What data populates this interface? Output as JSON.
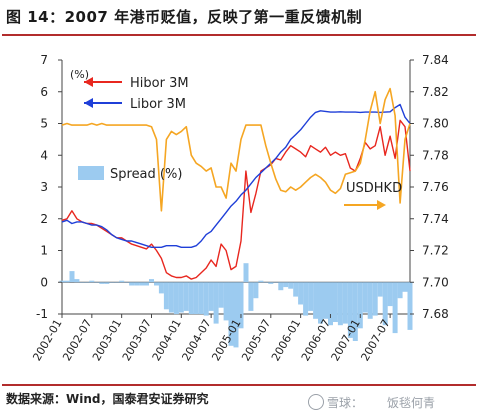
{
  "page": {
    "title": "图 14：2007 年港币贬值，反映了第一重反馈机制",
    "source": "数据来源：Wind，国泰君安证券研究",
    "watermark_left": "雪球：",
    "watermark_right": "饭毯何青"
  },
  "chart_data": {
    "type": "line",
    "left_axis_unit": "(%)",
    "left_ylim": [
      -1,
      7
    ],
    "left_ticks": [
      -1,
      0,
      1,
      2,
      3,
      4,
      5,
      6,
      7
    ],
    "right_ylim": [
      7.68,
      7.84
    ],
    "right_ticks": [
      "7.68",
      "7.70",
      "7.72",
      "7.74",
      "7.76",
      "7.78",
      "7.80",
      "7.82",
      "7.84"
    ],
    "x_tick_labels": [
      "2002-01",
      "2002-07",
      "2003-01",
      "2003-07",
      "2004-01",
      "2004-07",
      "2005-01",
      "2005-07",
      "2006-01",
      "2006-07",
      "2007-01",
      "2007-07"
    ],
    "series": [
      {
        "name": "Hibor 3M",
        "color": "#e8271f",
        "axis": "left",
        "values": [
          1.95,
          2.0,
          2.25,
          2.0,
          1.9,
          1.85,
          1.85,
          1.8,
          1.7,
          1.6,
          1.5,
          1.4,
          1.4,
          1.3,
          1.2,
          1.15,
          1.1,
          1.05,
          1.2,
          1.0,
          0.75,
          0.3,
          0.2,
          0.15,
          0.15,
          0.2,
          0.1,
          0.15,
          0.3,
          0.45,
          0.7,
          0.5,
          1.2,
          1.0,
          0.4,
          0.5,
          1.3,
          3.5,
          2.2,
          2.8,
          3.5,
          3.6,
          3.7,
          3.9,
          3.85,
          4.1,
          4.3,
          4.2,
          4.1,
          3.95,
          4.3,
          4.2,
          4.1,
          4.25,
          4.0,
          4.1,
          4.0,
          4.05,
          3.6,
          3.5,
          3.9,
          4.4,
          4.2,
          4.3,
          4.9,
          4.0,
          4.6,
          3.9,
          5.1,
          4.9,
          3.5
        ]
      },
      {
        "name": "Libor 3M",
        "color": "#1f3fd8",
        "axis": "left",
        "values": [
          1.9,
          1.95,
          1.85,
          1.9,
          1.9,
          1.85,
          1.8,
          1.8,
          1.75,
          1.65,
          1.5,
          1.4,
          1.35,
          1.3,
          1.3,
          1.25,
          1.2,
          1.15,
          1.1,
          1.1,
          1.1,
          1.15,
          1.15,
          1.15,
          1.1,
          1.1,
          1.1,
          1.15,
          1.3,
          1.5,
          1.6,
          1.8,
          2.0,
          2.2,
          2.4,
          2.55,
          2.75,
          2.9,
          3.1,
          3.3,
          3.45,
          3.6,
          3.75,
          3.9,
          4.1,
          4.25,
          4.5,
          4.65,
          4.8,
          5.0,
          5.2,
          5.35,
          5.4,
          5.38,
          5.36,
          5.36,
          5.37,
          5.36,
          5.36,
          5.36,
          5.35,
          5.36,
          5.36,
          5.36,
          5.35,
          5.36,
          5.37,
          5.5,
          5.6,
          5.2,
          5.0
        ]
      },
      {
        "name": "Spread",
        "unit": "(%)",
        "color": "#9ccbf0",
        "axis": "left",
        "kind": "area",
        "values": [
          0.05,
          0.05,
          0.35,
          0.1,
          0.0,
          0.0,
          0.05,
          0.0,
          -0.05,
          -0.05,
          0.0,
          0.0,
          0.05,
          0.0,
          -0.1,
          -0.1,
          -0.1,
          -0.1,
          0.1,
          -0.1,
          -0.35,
          -0.85,
          -0.95,
          -1.0,
          -0.95,
          -0.9,
          -1.0,
          -1.0,
          -1.0,
          -1.05,
          -0.9,
          -1.3,
          -0.8,
          -1.2,
          -2.0,
          -2.05,
          -1.45,
          0.6,
          -0.9,
          -0.5,
          0.05,
          0.0,
          -0.05,
          0.0,
          -0.25,
          -0.15,
          -0.2,
          -0.45,
          -0.7,
          -1.05,
          -0.9,
          -1.15,
          -1.3,
          -1.15,
          -1.35,
          -1.25,
          -1.35,
          -1.3,
          -1.75,
          -1.85,
          -1.45,
          -0.95,
          -1.15,
          -1.05,
          -0.45,
          -1.35,
          -0.75,
          -1.6,
          -0.5,
          -0.3,
          -1.5
        ]
      },
      {
        "name": "USDHKD",
        "color": "#f5a623",
        "axis": "right",
        "values": [
          7.799,
          7.8,
          7.799,
          7.799,
          7.799,
          7.799,
          7.8,
          7.799,
          7.8,
          7.799,
          7.799,
          7.799,
          7.799,
          7.799,
          7.799,
          7.799,
          7.799,
          7.799,
          7.798,
          7.79,
          7.745,
          7.79,
          7.795,
          7.793,
          7.795,
          7.798,
          7.78,
          7.775,
          7.773,
          7.77,
          7.772,
          7.76,
          7.76,
          7.753,
          7.775,
          7.77,
          7.79,
          7.799,
          7.799,
          7.799,
          7.799,
          7.786,
          7.775,
          7.765,
          7.758,
          7.757,
          7.76,
          7.758,
          7.76,
          7.763,
          7.766,
          7.768,
          7.766,
          7.763,
          7.758,
          7.756,
          7.759,
          7.768,
          7.769,
          7.77,
          7.775,
          7.79,
          7.808,
          7.82,
          7.8,
          7.815,
          7.822,
          7.805,
          7.75,
          7.79,
          7.8
        ]
      }
    ],
    "legend": [
      "Hibor 3M",
      "Libor 3M",
      "Spread (%)"
    ],
    "annotation": "USDHKD"
  }
}
